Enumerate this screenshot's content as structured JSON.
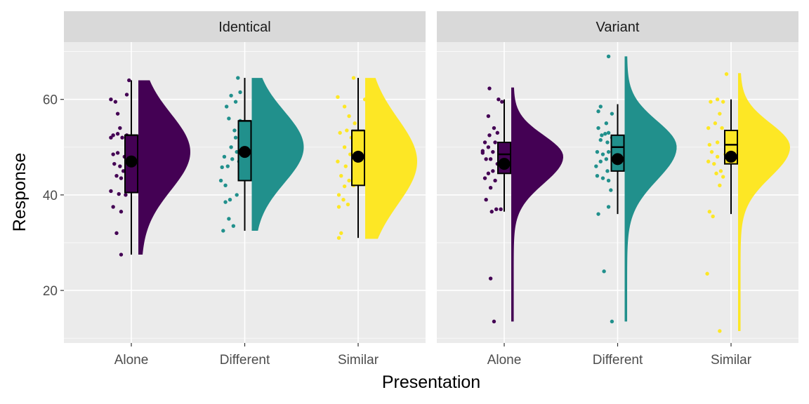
{
  "chart_data": {
    "type": "raincloud",
    "xlabel": "Presentation",
    "ylabel": "Response",
    "categories": [
      "Alone",
      "Different",
      "Similar"
    ],
    "yticks": [
      20,
      40,
      60
    ],
    "ylim": [
      9,
      72
    ],
    "colors": {
      "Alone": "#440154",
      "Different": "#21908C",
      "Similar": "#FDE725"
    },
    "panels": [
      {
        "label": "Identical",
        "groups": [
          {
            "category": "Alone",
            "min": 27.5,
            "q1": 40.5,
            "median": 52.5,
            "q3": 52.5,
            "max": 64,
            "mean": 47,
            "density": {
              "low": 27.5,
              "high": 64,
              "peak": 49,
              "sigma": 8,
              "shape": "normal"
            },
            "points": [
              [
                -0.18,
                60
              ],
              [
                -0.14,
                59.5
              ],
              [
                -0.12,
                57
              ],
              [
                -0.1,
                54
              ],
              [
                -0.16,
                52.5
              ],
              [
                -0.12,
                52.8
              ],
              [
                -0.08,
                52
              ],
              [
                -0.04,
                52.5
              ],
              [
                -0.02,
                51.5
              ],
              [
                -0.18,
                52
              ],
              [
                -0.16,
                48.5
              ],
              [
                -0.12,
                48.8
              ],
              [
                -0.06,
                48
              ],
              [
                -0.15,
                46.5
              ],
              [
                -0.1,
                46
              ],
              [
                -0.04,
                46
              ],
              [
                -0.07,
                45
              ],
              [
                -0.13,
                44
              ],
              [
                -0.09,
                43.5
              ],
              [
                -0.03,
                42
              ],
              [
                -0.18,
                40.8
              ],
              [
                -0.11,
                40.2
              ],
              [
                -0.05,
                40
              ],
              [
                -0.16,
                37.5
              ],
              [
                -0.09,
                36.5
              ],
              [
                -0.13,
                32
              ],
              [
                -0.09,
                27.5
              ],
              [
                -0.04,
                61
              ],
              [
                -0.02,
                64
              ]
            ]
          },
          {
            "category": "Different",
            "min": 32.5,
            "q1": 43,
            "median": 55.5,
            "q3": 55.5,
            "max": 64.5,
            "mean": 49,
            "density": {
              "low": 32.5,
              "high": 64.5,
              "peak": 50,
              "sigma": 7.5,
              "shape": "normal"
            },
            "points": [
              [
                -0.12,
                60.8
              ],
              [
                -0.08,
                59.5
              ],
              [
                -0.16,
                58.5
              ],
              [
                -0.04,
                61.5
              ],
              [
                -0.06,
                64.5
              ],
              [
                -0.14,
                56
              ],
              [
                -0.04,
                55.5
              ],
              [
                -0.09,
                53.5
              ],
              [
                -0.08,
                52
              ],
              [
                -0.03,
                52.5
              ],
              [
                -0.12,
                50
              ],
              [
                -0.07,
                49
              ],
              [
                -0.18,
                48
              ],
              [
                -0.11,
                47.5
              ],
              [
                -0.05,
                47
              ],
              [
                -0.15,
                46
              ],
              [
                -0.2,
                45.8
              ],
              [
                -0.21,
                43
              ],
              [
                -0.17,
                42
              ],
              [
                -0.07,
                40
              ],
              [
                -0.13,
                39
              ],
              [
                -0.17,
                38.5
              ],
              [
                -0.14,
                35
              ],
              [
                -0.1,
                33.5
              ],
              [
                -0.19,
                32.5
              ]
            ]
          },
          {
            "category": "Similar",
            "min": 31,
            "q1": 42,
            "median": 53.5,
            "q3": 53.5,
            "max": 64.5,
            "mean": 48,
            "density": {
              "low": 30.8,
              "high": 64.5,
              "peak": 47,
              "sigma": 9,
              "shape": "normal"
            },
            "points": [
              [
                -0.18,
                60.5
              ],
              [
                -0.12,
                58.5
              ],
              [
                -0.08,
                56.5
              ],
              [
                -0.04,
                64.5
              ],
              [
                -0.03,
                55
              ],
              [
                -0.16,
                53
              ],
              [
                -0.1,
                53.5
              ],
              [
                -0.06,
                52
              ],
              [
                -0.12,
                50
              ],
              [
                -0.07,
                48.5
              ],
              [
                -0.03,
                48
              ],
              [
                -0.18,
                47
              ],
              [
                -0.11,
                46
              ],
              [
                -0.15,
                44
              ],
              [
                -0.08,
                43
              ],
              [
                -0.04,
                42
              ],
              [
                -0.12,
                41.8
              ],
              [
                -0.17,
                40
              ],
              [
                -0.13,
                39
              ],
              [
                -0.17,
                37.5
              ],
              [
                -0.09,
                38
              ],
              [
                -0.15,
                32
              ],
              [
                -0.17,
                31
              ],
              [
                0.06,
                60
              ]
            ]
          }
        ]
      },
      {
        "label": "Variant",
        "groups": [
          {
            "category": "Alone",
            "min": 36.5,
            "q1": 44.5,
            "median": 48.5,
            "q3": 51,
            "max": 60,
            "mean": 46.5,
            "density": {
              "low": 13.5,
              "high": 62.5,
              "peak": 48,
              "sigma": 4.5,
              "shape": "skewed"
            },
            "points": [
              [
                -0.13,
                62.3
              ],
              [
                -0.05,
                60
              ],
              [
                -0.02,
                59.5
              ],
              [
                -0.14,
                56.5
              ],
              [
                -0.09,
                54
              ],
              [
                -0.06,
                53
              ],
              [
                -0.13,
                52.5
              ],
              [
                -0.17,
                51
              ],
              [
                -0.08,
                51
              ],
              [
                -0.14,
                50
              ],
              [
                -0.1,
                49
              ],
              [
                -0.19,
                49.2
              ],
              [
                -0.03,
                49
              ],
              [
                -0.16,
                47.5
              ],
              [
                -0.12,
                47.5
              ],
              [
                -0.06,
                46.5
              ],
              [
                -0.1,
                45
              ],
              [
                -0.14,
                44.5
              ],
              [
                -0.17,
                43.5
              ],
              [
                -0.08,
                43
              ],
              [
                -0.12,
                41.5
              ],
              [
                -0.16,
                39
              ],
              [
                -0.07,
                37
              ],
              [
                -0.11,
                36.5
              ],
              [
                -0.03,
                37
              ],
              [
                -0.19,
                48.8
              ],
              [
                -0.12,
                22.5
              ],
              [
                -0.09,
                13.5
              ]
            ]
          },
          {
            "category": "Different",
            "min": 36,
            "q1": 45,
            "median": 50,
            "q3": 52.5,
            "max": 59,
            "mean": 47.5,
            "density": {
              "low": 13.5,
              "high": 69,
              "peak": 50,
              "sigma": 5.5,
              "shape": "skewed"
            },
            "points": [
              [
                -0.15,
                58.5
              ],
              [
                -0.17,
                57.5
              ],
              [
                -0.05,
                57
              ],
              [
                -0.1,
                55
              ],
              [
                -0.17,
                54
              ],
              [
                -0.08,
                53
              ],
              [
                -0.14,
                52.5
              ],
              [
                -0.11,
                52.8
              ],
              [
                -0.05,
                52
              ],
              [
                -0.15,
                51.5
              ],
              [
                -0.09,
                51
              ],
              [
                -0.04,
                50.5
              ],
              [
                -0.18,
                49
              ],
              [
                -0.13,
                48.5
              ],
              [
                -0.08,
                49
              ],
              [
                -0.1,
                47.5
              ],
              [
                -0.15,
                47
              ],
              [
                -0.19,
                46
              ],
              [
                -0.09,
                45
              ],
              [
                -0.18,
                44
              ],
              [
                -0.13,
                43.5
              ],
              [
                -0.08,
                43
              ],
              [
                -0.06,
                41
              ],
              [
                -0.08,
                37.5
              ],
              [
                -0.17,
                36
              ],
              [
                -0.12,
                24
              ],
              [
                -0.05,
                13.5
              ],
              [
                -0.08,
                69
              ]
            ]
          },
          {
            "category": "Similar",
            "min": 36,
            "q1": 46.5,
            "median": 50.5,
            "q3": 53.5,
            "max": 60,
            "mean": 48,
            "density": {
              "low": 11.5,
              "high": 65.5,
              "peak": 50,
              "sigma": 5,
              "shape": "skewed"
            },
            "points": [
              [
                -0.18,
                59.5
              ],
              [
                -0.12,
                60
              ],
              [
                -0.07,
                59.5
              ],
              [
                -0.1,
                57
              ],
              [
                -0.2,
                54
              ],
              [
                -0.14,
                55
              ],
              [
                -0.08,
                54
              ],
              [
                -0.04,
                52
              ],
              [
                -0.19,
                50.5
              ],
              [
                -0.12,
                51
              ],
              [
                -0.17,
                49
              ],
              [
                -0.12,
                48
              ],
              [
                -0.05,
                48.5
              ],
              [
                -0.2,
                47
              ],
              [
                -0.15,
                46.5
              ],
              [
                -0.09,
                45
              ],
              [
                -0.13,
                44.5
              ],
              [
                -0.07,
                43.8
              ],
              [
                -0.1,
                42
              ],
              [
                -0.19,
                36.5
              ],
              [
                -0.16,
                35.5
              ],
              [
                -0.21,
                23.5
              ],
              [
                -0.1,
                11.5
              ],
              [
                -0.04,
                65.3
              ]
            ]
          }
        ]
      }
    ]
  }
}
